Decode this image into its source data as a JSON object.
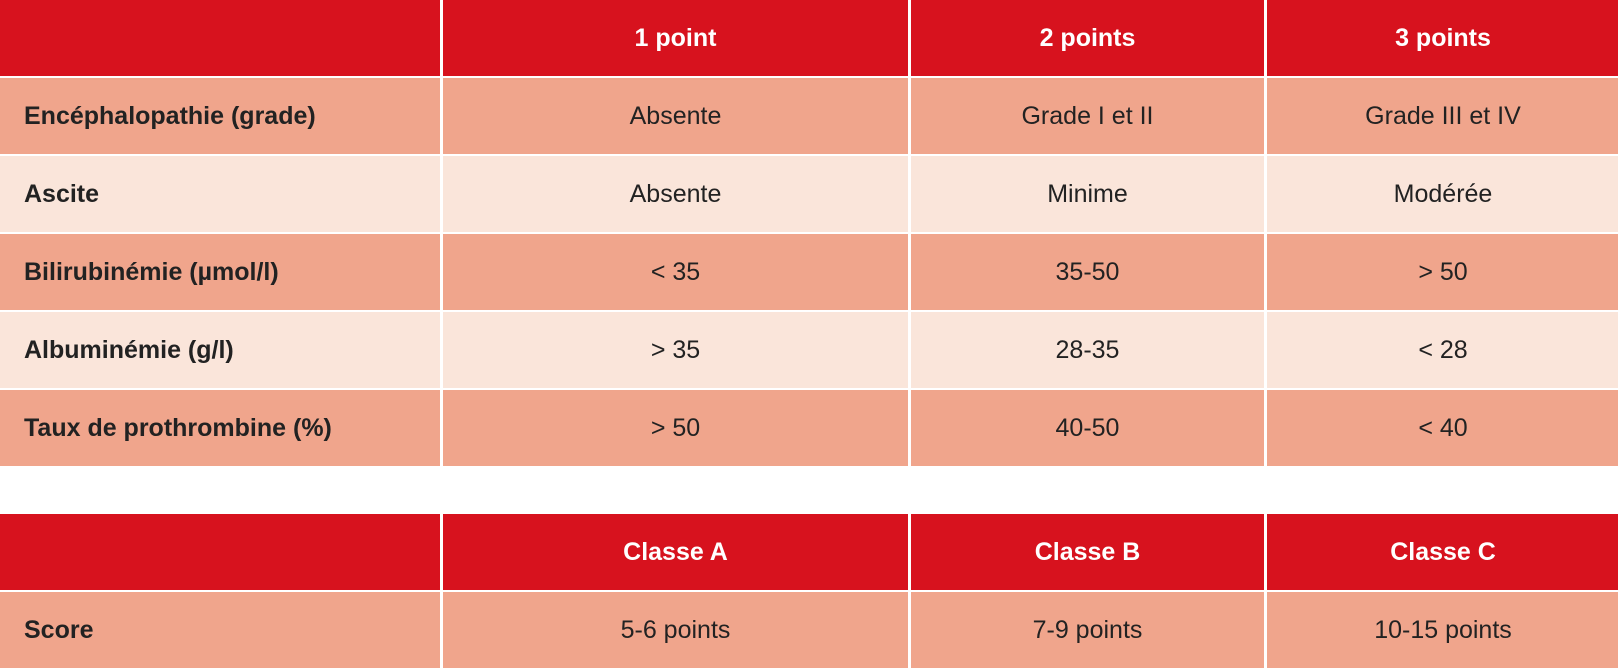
{
  "colors": {
    "header": "#d7121e",
    "row_dark": "#f0a58c",
    "row_light": "#fae5da"
  },
  "points_table": {
    "headers": [
      "",
      "1 point",
      "2 points",
      "3 points"
    ],
    "rows": [
      {
        "label": "Encéphalopathie (grade)",
        "values": [
          "Absente",
          "Grade I et II",
          "Grade III et IV"
        ]
      },
      {
        "label": "Ascite",
        "values": [
          "Absente",
          "Minime",
          "Modérée"
        ]
      },
      {
        "label": "Bilirubinémie (µmol/l)",
        "values": [
          "< 35",
          "35-50",
          "> 50"
        ]
      },
      {
        "label": "Albuminémie (g/l)",
        "values": [
          "> 35",
          "28-35",
          "< 28"
        ]
      },
      {
        "label": "Taux de prothrombine (%)",
        "values": [
          "> 50",
          "40-50",
          "< 40"
        ]
      }
    ]
  },
  "class_table": {
    "headers": [
      "",
      "Classe A",
      "Classe B",
      "Classe C"
    ],
    "rows": [
      {
        "label": "Score",
        "values": [
          "5-6 points",
          "7-9 points",
          "10-15 points"
        ]
      }
    ]
  }
}
